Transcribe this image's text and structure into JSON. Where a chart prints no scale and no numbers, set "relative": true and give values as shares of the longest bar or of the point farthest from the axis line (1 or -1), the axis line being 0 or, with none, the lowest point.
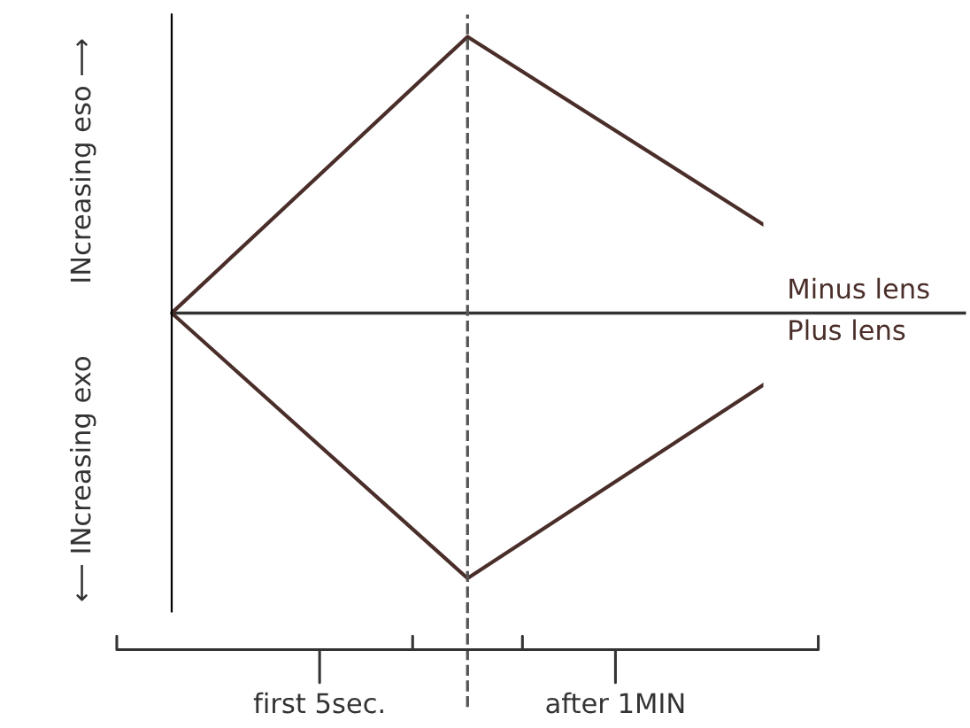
{
  "chart_data": {
    "type": "line",
    "relative": true,
    "categories": [
      null,
      null,
      null
    ],
    "series": [
      {
        "name": "Minus lens",
        "color": "#4a2e2a",
        "values": [
          0,
          1,
          0.32
        ]
      },
      {
        "name": "Plus lens",
        "color": "#4a2e2a",
        "values": [
          0,
          -0.96,
          -0.26
        ]
      }
    ],
    "annotations": [
      "INcreasing eso ⟶",
      "⟵ INcreasing exo",
      "first 5sec.",
      "after 1MIN"
    ],
    "marker": "none",
    "line_style": "solid"
  }
}
